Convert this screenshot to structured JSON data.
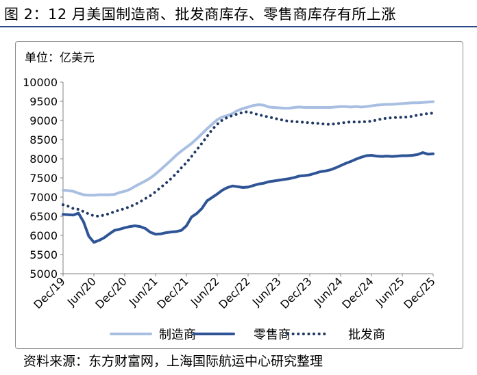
{
  "figure": {
    "title": "图 2：12 月美国制造商、批发商库存、零售商库存有所上涨",
    "unit_label": "单位：亿美元",
    "source": "资料来源：东方财富网，上海国际航运中心研究整理",
    "colors": {
      "title_rule": "#2b4b86",
      "manufacturers": "#a9bfe2",
      "retailers": "#2f5597",
      "wholesalers": "#1f3864",
      "axis": "#808080"
    }
  },
  "chart_data": {
    "type": "line",
    "title": "",
    "xlabel": "",
    "ylabel": "亿美元",
    "ylim": [
      5000,
      10000
    ],
    "yticks": [
      5000,
      5500,
      6000,
      6500,
      7000,
      7500,
      8000,
      8500,
      9000,
      9500,
      10000
    ],
    "xticks": [
      "Dec/19",
      "Jun/20",
      "Dec/20",
      "Jun/21",
      "Dec/21",
      "Jun/22",
      "Dec/22",
      "Jun/23",
      "Dec/23",
      "Jun/24",
      "Dec/24",
      "Jun/25",
      "Dec/25"
    ],
    "x_range": [
      "2019-12",
      "2025-12"
    ],
    "grid": false,
    "legend": "bottom-center",
    "series": [
      {
        "name": "制造商",
        "style": "solid-light",
        "points": [
          [
            "2019-12",
            7180
          ],
          [
            "2020-01",
            7170
          ],
          [
            "2020-02",
            7150
          ],
          [
            "2020-03",
            7100
          ],
          [
            "2020-04",
            7060
          ],
          [
            "2020-05",
            7050
          ],
          [
            "2020-06",
            7050
          ],
          [
            "2020-07",
            7060
          ],
          [
            "2020-08",
            7060
          ],
          [
            "2020-09",
            7060
          ],
          [
            "2020-10",
            7070
          ],
          [
            "2020-11",
            7120
          ],
          [
            "2020-12",
            7150
          ],
          [
            "2021-01",
            7200
          ],
          [
            "2021-02",
            7280
          ],
          [
            "2021-03",
            7350
          ],
          [
            "2021-04",
            7420
          ],
          [
            "2021-05",
            7500
          ],
          [
            "2021-06",
            7600
          ],
          [
            "2021-07",
            7720
          ],
          [
            "2021-08",
            7840
          ],
          [
            "2021-09",
            7960
          ],
          [
            "2021-10",
            8090
          ],
          [
            "2021-11",
            8200
          ],
          [
            "2021-12",
            8300
          ],
          [
            "2022-01",
            8400
          ],
          [
            "2022-02",
            8520
          ],
          [
            "2022-03",
            8650
          ],
          [
            "2022-04",
            8780
          ],
          [
            "2022-05",
            8900
          ],
          [
            "2022-06",
            9020
          ],
          [
            "2022-07",
            9090
          ],
          [
            "2022-08",
            9130
          ],
          [
            "2022-09",
            9180
          ],
          [
            "2022-10",
            9260
          ],
          [
            "2022-11",
            9310
          ],
          [
            "2022-12",
            9350
          ],
          [
            "2023-01",
            9390
          ],
          [
            "2023-02",
            9410
          ],
          [
            "2023-03",
            9400
          ],
          [
            "2023-04",
            9350
          ],
          [
            "2023-05",
            9340
          ],
          [
            "2023-06",
            9330
          ],
          [
            "2023-07",
            9320
          ],
          [
            "2023-08",
            9320
          ],
          [
            "2023-09",
            9340
          ],
          [
            "2023-10",
            9350
          ],
          [
            "2023-11",
            9340
          ],
          [
            "2023-12",
            9340
          ],
          [
            "2024-01",
            9340
          ],
          [
            "2024-02",
            9340
          ],
          [
            "2024-03",
            9340
          ],
          [
            "2024-04",
            9340
          ],
          [
            "2024-05",
            9350
          ],
          [
            "2024-06",
            9360
          ],
          [
            "2024-07",
            9360
          ],
          [
            "2024-08",
            9350
          ],
          [
            "2024-09",
            9360
          ],
          [
            "2024-10",
            9350
          ],
          [
            "2024-11",
            9360
          ],
          [
            "2024-12",
            9380
          ],
          [
            "2025-01",
            9400
          ],
          [
            "2025-02",
            9410
          ],
          [
            "2025-03",
            9420
          ],
          [
            "2025-04",
            9420
          ],
          [
            "2025-05",
            9430
          ],
          [
            "2025-06",
            9440
          ],
          [
            "2025-07",
            9450
          ],
          [
            "2025-08",
            9460
          ],
          [
            "2025-09",
            9460
          ],
          [
            "2025-10",
            9470
          ],
          [
            "2025-11",
            9480
          ],
          [
            "2025-12",
            9490
          ]
        ]
      },
      {
        "name": "零售商",
        "style": "solid-dark",
        "points": [
          [
            "2019-12",
            6550
          ],
          [
            "2020-01",
            6540
          ],
          [
            "2020-02",
            6530
          ],
          [
            "2020-03",
            6580
          ],
          [
            "2020-04",
            6350
          ],
          [
            "2020-05",
            5980
          ],
          [
            "2020-06",
            5820
          ],
          [
            "2020-07",
            5870
          ],
          [
            "2020-08",
            5940
          ],
          [
            "2020-09",
            6040
          ],
          [
            "2020-10",
            6130
          ],
          [
            "2020-11",
            6160
          ],
          [
            "2020-12",
            6200
          ],
          [
            "2021-01",
            6230
          ],
          [
            "2021-02",
            6250
          ],
          [
            "2021-03",
            6230
          ],
          [
            "2021-04",
            6180
          ],
          [
            "2021-05",
            6080
          ],
          [
            "2021-06",
            6030
          ],
          [
            "2021-07",
            6040
          ],
          [
            "2021-08",
            6070
          ],
          [
            "2021-09",
            6090
          ],
          [
            "2021-10",
            6100
          ],
          [
            "2021-11",
            6130
          ],
          [
            "2021-12",
            6250
          ],
          [
            "2022-01",
            6480
          ],
          [
            "2022-02",
            6570
          ],
          [
            "2022-03",
            6700
          ],
          [
            "2022-04",
            6900
          ],
          [
            "2022-05",
            6990
          ],
          [
            "2022-06",
            7080
          ],
          [
            "2022-07",
            7180
          ],
          [
            "2022-08",
            7250
          ],
          [
            "2022-09",
            7290
          ],
          [
            "2022-10",
            7270
          ],
          [
            "2022-11",
            7250
          ],
          [
            "2022-12",
            7260
          ],
          [
            "2023-01",
            7300
          ],
          [
            "2023-02",
            7340
          ],
          [
            "2023-03",
            7360
          ],
          [
            "2023-04",
            7400
          ],
          [
            "2023-05",
            7420
          ],
          [
            "2023-06",
            7440
          ],
          [
            "2023-07",
            7460
          ],
          [
            "2023-08",
            7480
          ],
          [
            "2023-09",
            7510
          ],
          [
            "2023-10",
            7550
          ],
          [
            "2023-11",
            7560
          ],
          [
            "2023-12",
            7580
          ],
          [
            "2024-01",
            7620
          ],
          [
            "2024-02",
            7660
          ],
          [
            "2024-03",
            7680
          ],
          [
            "2024-04",
            7710
          ],
          [
            "2024-05",
            7760
          ],
          [
            "2024-06",
            7820
          ],
          [
            "2024-07",
            7880
          ],
          [
            "2024-08",
            7930
          ],
          [
            "2024-09",
            7990
          ],
          [
            "2024-10",
            8040
          ],
          [
            "2024-11",
            8080
          ],
          [
            "2024-12",
            8090
          ],
          [
            "2025-01",
            8070
          ],
          [
            "2025-02",
            8060
          ],
          [
            "2025-03",
            8070
          ],
          [
            "2025-04",
            8060
          ],
          [
            "2025-05",
            8070
          ],
          [
            "2025-06",
            8080
          ],
          [
            "2025-07",
            8080
          ],
          [
            "2025-08",
            8090
          ],
          [
            "2025-09",
            8110
          ],
          [
            "2025-10",
            8160
          ],
          [
            "2025-11",
            8120
          ],
          [
            "2025-12",
            8130
          ]
        ]
      },
      {
        "name": "批发商",
        "style": "dotted",
        "points": [
          [
            "2019-12",
            6800
          ],
          [
            "2020-01",
            6760
          ],
          [
            "2020-02",
            6700
          ],
          [
            "2020-03",
            6680
          ],
          [
            "2020-04",
            6620
          ],
          [
            "2020-05",
            6560
          ],
          [
            "2020-06",
            6510
          ],
          [
            "2020-07",
            6500
          ],
          [
            "2020-08",
            6530
          ],
          [
            "2020-09",
            6570
          ],
          [
            "2020-10",
            6620
          ],
          [
            "2020-11",
            6660
          ],
          [
            "2020-12",
            6700
          ],
          [
            "2021-01",
            6750
          ],
          [
            "2021-02",
            6810
          ],
          [
            "2021-03",
            6880
          ],
          [
            "2021-04",
            6960
          ],
          [
            "2021-05",
            7040
          ],
          [
            "2021-06",
            7140
          ],
          [
            "2021-07",
            7250
          ],
          [
            "2021-08",
            7360
          ],
          [
            "2021-09",
            7480
          ],
          [
            "2021-10",
            7610
          ],
          [
            "2021-11",
            7760
          ],
          [
            "2021-12",
            7900
          ],
          [
            "2022-01",
            8060
          ],
          [
            "2022-02",
            8230
          ],
          [
            "2022-03",
            8400
          ],
          [
            "2022-04",
            8580
          ],
          [
            "2022-05",
            8760
          ],
          [
            "2022-06",
            8900
          ],
          [
            "2022-07",
            9010
          ],
          [
            "2022-08",
            9080
          ],
          [
            "2022-09",
            9130
          ],
          [
            "2022-10",
            9170
          ],
          [
            "2022-11",
            9210
          ],
          [
            "2022-12",
            9230
          ],
          [
            "2023-01",
            9190
          ],
          [
            "2023-02",
            9150
          ],
          [
            "2023-03",
            9120
          ],
          [
            "2023-04",
            9090
          ],
          [
            "2023-05",
            9060
          ],
          [
            "2023-06",
            9030
          ],
          [
            "2023-07",
            9000
          ],
          [
            "2023-08",
            8980
          ],
          [
            "2023-09",
            8970
          ],
          [
            "2023-10",
            8960
          ],
          [
            "2023-11",
            8950
          ],
          [
            "2023-12",
            8940
          ],
          [
            "2024-01",
            8930
          ],
          [
            "2024-02",
            8920
          ],
          [
            "2024-03",
            8900
          ],
          [
            "2024-04",
            8900
          ],
          [
            "2024-05",
            8910
          ],
          [
            "2024-06",
            8930
          ],
          [
            "2024-07",
            8950
          ],
          [
            "2024-08",
            8960
          ],
          [
            "2024-09",
            8960
          ],
          [
            "2024-10",
            8960
          ],
          [
            "2024-11",
            8970
          ],
          [
            "2024-12",
            8980
          ],
          [
            "2025-01",
            9010
          ],
          [
            "2025-02",
            9040
          ],
          [
            "2025-03",
            9060
          ],
          [
            "2025-04",
            9070
          ],
          [
            "2025-05",
            9080
          ],
          [
            "2025-06",
            9080
          ],
          [
            "2025-07",
            9090
          ],
          [
            "2025-08",
            9110
          ],
          [
            "2025-09",
            9140
          ],
          [
            "2025-10",
            9160
          ],
          [
            "2025-11",
            9180
          ],
          [
            "2025-12",
            9190
          ]
        ]
      }
    ]
  }
}
